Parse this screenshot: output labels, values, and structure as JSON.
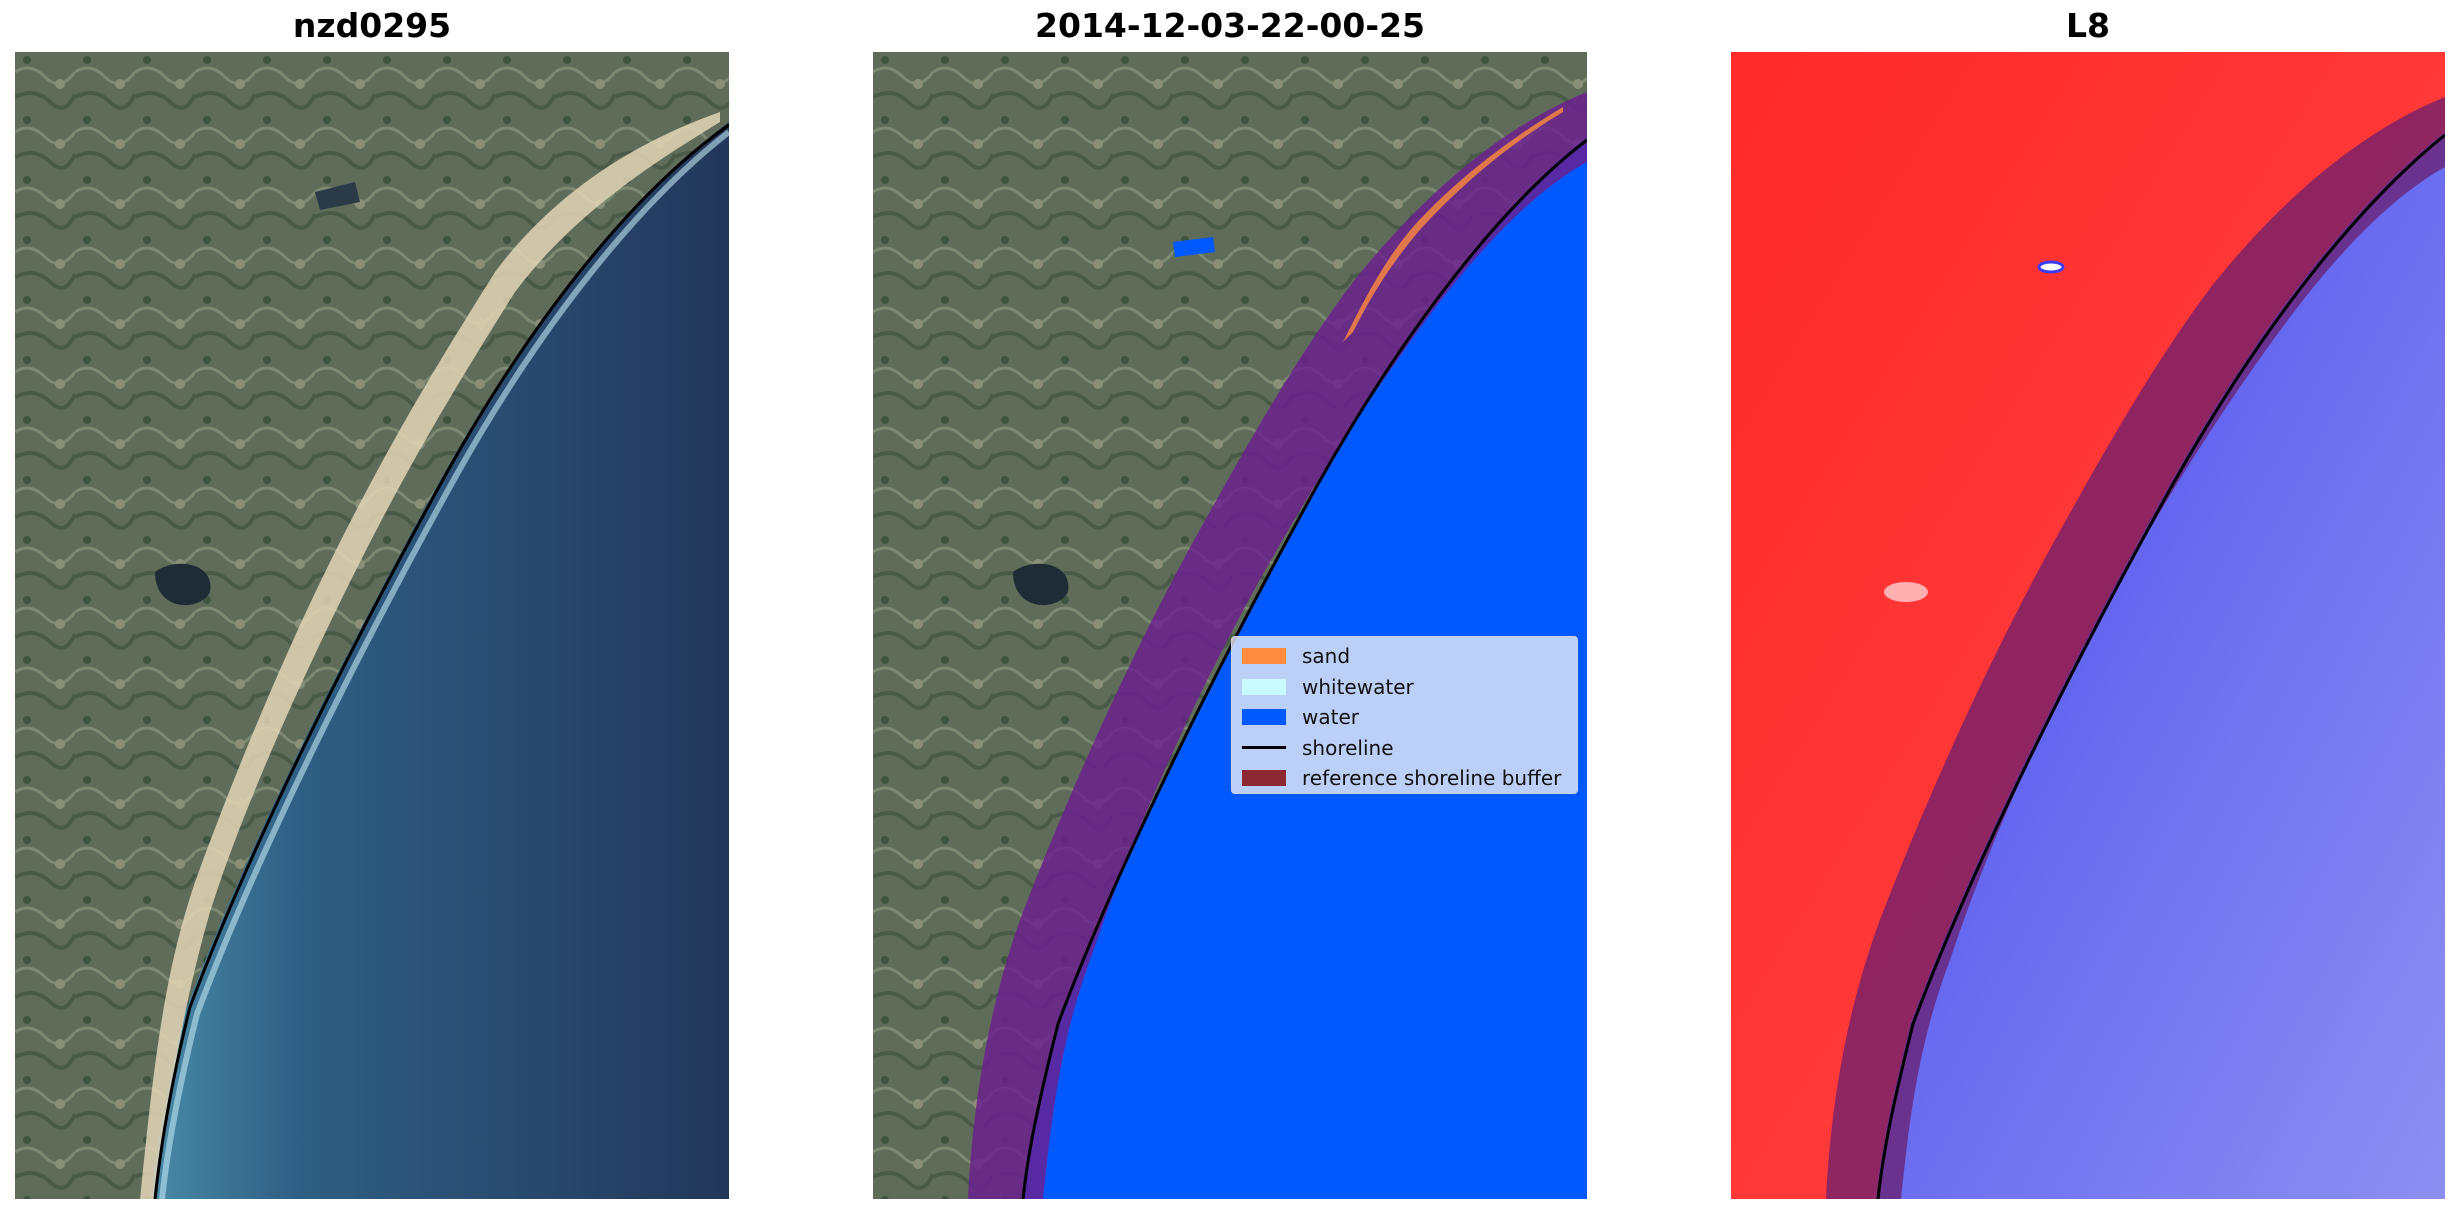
{
  "panels": [
    {
      "title": "nzd0295"
    },
    {
      "title": "2014-12-03-22-00-25"
    },
    {
      "title": "L8"
    }
  ],
  "legend": {
    "items": [
      {
        "label": "sand",
        "color": "#ff8c3c"
      },
      {
        "label": "whitewater",
        "color": "#c8faff"
      },
      {
        "label": "water",
        "color": "#0059ff"
      },
      {
        "label": "shoreline",
        "color": "#000000"
      },
      {
        "label": "reference shoreline buffer",
        "color": "#8b2832"
      }
    ]
  },
  "colors": {
    "land": "#5f6f5c",
    "ocean_deep": "#253a5e",
    "ocean_near": "#3f7da0",
    "beach_sand": "#e6d7b8",
    "index_land": "#ff2a2a",
    "index_water": "#5a5cf0",
    "buffer": "#6a1f8f"
  }
}
